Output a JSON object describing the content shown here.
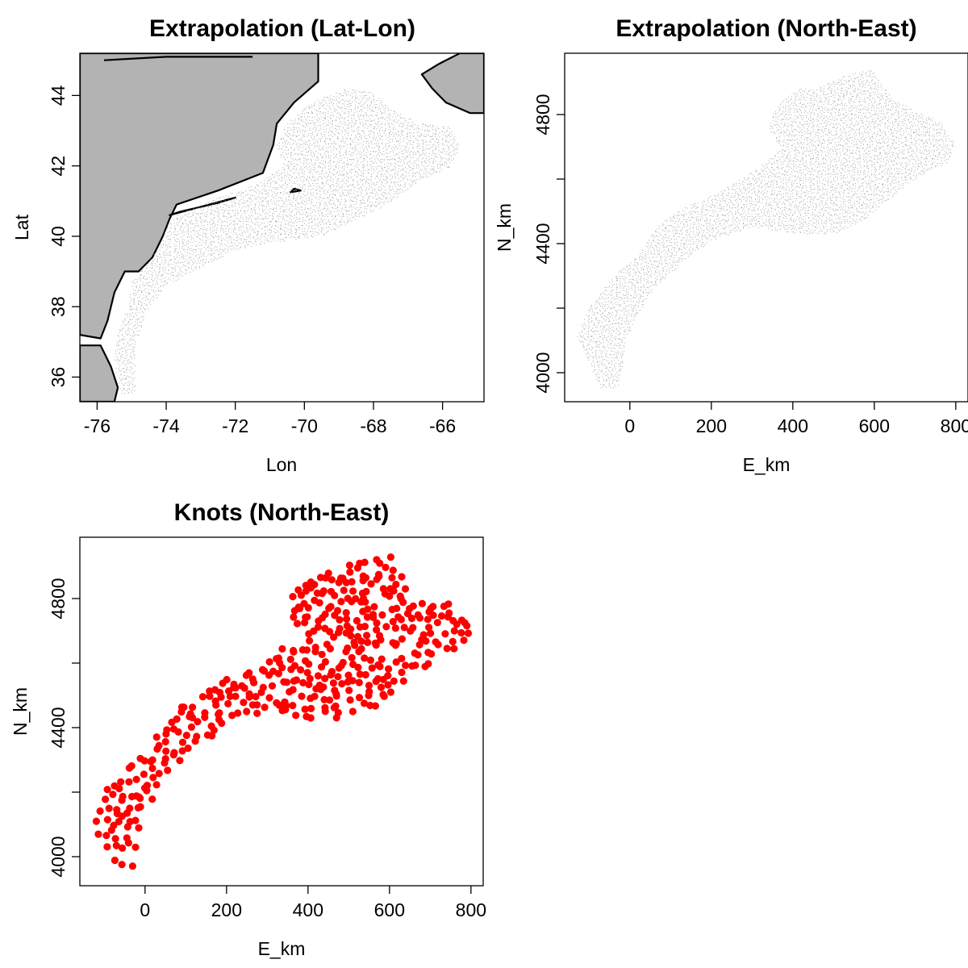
{
  "chart_data": [
    {
      "type": "scatter",
      "title": "Extrapolation (Lat-Lon)",
      "xlabel": "Lon",
      "ylabel": "Lat",
      "xlim": [
        -76.5,
        -64.8
      ],
      "ylim": [
        35.3,
        45.2
      ],
      "xticks": [
        -76,
        -74,
        -72,
        -70,
        -68,
        -66
      ],
      "yticks": [
        36,
        38,
        40,
        42,
        44
      ],
      "xtick_labels": [
        "-76",
        "-74",
        "-72",
        "-70",
        "-68",
        "-66"
      ],
      "ytick_labels": [
        "36",
        "38",
        "40",
        "42",
        "44"
      ],
      "land_color": "#b3b3b3",
      "point_color": "#9a9a9a",
      "region_outline": [
        [
          -75.3,
          35.5
        ],
        [
          -74.9,
          35.5
        ],
        [
          -74.9,
          36.8
        ],
        [
          -74.6,
          37.8
        ],
        [
          -74.0,
          38.6
        ],
        [
          -73.0,
          39.1
        ],
        [
          -72.0,
          39.6
        ],
        [
          -71.0,
          39.8
        ],
        [
          -69.5,
          40.0
        ],
        [
          -68.6,
          40.4
        ],
        [
          -67.6,
          40.9
        ],
        [
          -66.6,
          41.6
        ],
        [
          -65.7,
          42.0
        ],
        [
          -65.5,
          42.6
        ],
        [
          -65.8,
          43.1
        ],
        [
          -66.6,
          43.2
        ],
        [
          -67.5,
          43.6
        ],
        [
          -68.0,
          44.1
        ],
        [
          -68.8,
          44.2
        ],
        [
          -69.8,
          43.8
        ],
        [
          -70.5,
          43.2
        ],
        [
          -70.8,
          42.6
        ],
        [
          -70.6,
          42.0
        ],
        [
          -71.3,
          41.5
        ],
        [
          -72.5,
          41.1
        ],
        [
          -73.7,
          40.6
        ],
        [
          -74.0,
          40.3
        ],
        [
          -74.1,
          39.8
        ],
        [
          -74.6,
          39.2
        ],
        [
          -75.0,
          38.7
        ],
        [
          -75.1,
          38.0
        ],
        [
          -75.4,
          37.3
        ],
        [
          -75.5,
          36.5
        ],
        [
          -75.4,
          35.9
        ]
      ],
      "land_polygons": [
        [
          [
            -76.5,
            45.2
          ],
          [
            -69.6,
            45.2
          ],
          [
            -69.6,
            44.4
          ],
          [
            -70.3,
            43.8
          ],
          [
            -70.8,
            43.2
          ],
          [
            -70.9,
            42.6
          ],
          [
            -71.2,
            41.8
          ],
          [
            -72.5,
            41.3
          ],
          [
            -73.7,
            40.9
          ],
          [
            -73.9,
            40.5
          ],
          [
            -74.1,
            40.0
          ],
          [
            -74.4,
            39.4
          ],
          [
            -74.8,
            39.0
          ],
          [
            -75.2,
            39.0
          ],
          [
            -75.5,
            38.4
          ],
          [
            -75.7,
            37.6
          ],
          [
            -75.9,
            37.1
          ],
          [
            -76.5,
            37.2
          ]
        ],
        [
          [
            -76.5,
            36.9
          ],
          [
            -75.9,
            36.9
          ],
          [
            -75.6,
            36.3
          ],
          [
            -75.4,
            35.7
          ],
          [
            -75.5,
            35.3
          ],
          [
            -76.5,
            35.3
          ]
        ],
        [
          [
            -64.8,
            45.2
          ],
          [
            -65.5,
            45.2
          ],
          [
            -66.1,
            44.9
          ],
          [
            -66.6,
            44.6
          ],
          [
            -66.3,
            44.2
          ],
          [
            -65.9,
            43.8
          ],
          [
            -65.2,
            43.5
          ],
          [
            -64.8,
            43.5
          ]
        ],
        [
          [
            -72.0,
            41.1
          ],
          [
            -73.9,
            40.6
          ],
          [
            -73.6,
            40.7
          ],
          [
            -72.5,
            40.95
          ]
        ],
        [
          [
            -70.1,
            41.3
          ],
          [
            -70.4,
            41.25
          ],
          [
            -70.3,
            41.35
          ]
        ]
      ],
      "boundary_lines": [
        [
          [
            -75.8,
            45.0
          ],
          [
            -74.0,
            45.1
          ],
          [
            -71.5,
            45.1
          ]
        ]
      ]
    },
    {
      "type": "scatter",
      "title": "Extrapolation (North-East)",
      "xlabel": "E_km",
      "ylabel": "N_km",
      "xlim": [
        -160,
        830
      ],
      "ylim": [
        3910,
        4990
      ],
      "xticks": [
        0,
        200,
        400,
        600,
        800
      ],
      "yticks": [
        4000,
        4400,
        4800
      ],
      "xtick_labels": [
        "0",
        "200",
        "400",
        "600",
        "800"
      ],
      "ytick_labels": [
        "4000",
        "4400",
        "4800"
      ],
      "yticks_minor": [
        4200,
        4600
      ],
      "point_color": "#9a9a9a",
      "region_outline": [
        [
          -70,
          3950
        ],
        [
          -30,
          3950
        ],
        [
          -20,
          4000
        ],
        [
          -10,
          4100
        ],
        [
          20,
          4180
        ],
        [
          60,
          4260
        ],
        [
          120,
          4330
        ],
        [
          200,
          4410
        ],
        [
          300,
          4450
        ],
        [
          400,
          4430
        ],
        [
          500,
          4430
        ],
        [
          560,
          4460
        ],
        [
          620,
          4520
        ],
        [
          700,
          4600
        ],
        [
          780,
          4650
        ],
        [
          800,
          4710
        ],
        [
          760,
          4780
        ],
        [
          700,
          4810
        ],
        [
          650,
          4850
        ],
        [
          620,
          4890
        ],
        [
          600,
          4940
        ],
        [
          520,
          4920
        ],
        [
          460,
          4880
        ],
        [
          420,
          4880
        ],
        [
          380,
          4850
        ],
        [
          350,
          4800
        ],
        [
          340,
          4750
        ],
        [
          370,
          4700
        ],
        [
          340,
          4660
        ],
        [
          300,
          4620
        ],
        [
          220,
          4560
        ],
        [
          100,
          4490
        ],
        [
          60,
          4440
        ],
        [
          20,
          4360
        ],
        [
          -40,
          4300
        ],
        [
          -100,
          4200
        ],
        [
          -130,
          4110
        ]
      ]
    },
    {
      "type": "scatter",
      "title": "Knots (North-East)",
      "xlabel": "E_km",
      "ylabel": "N_km",
      "xlim": [
        -160,
        830
      ],
      "ylim": [
        3910,
        4990
      ],
      "xticks": [
        0,
        200,
        400,
        600,
        800
      ],
      "yticks": [
        4000,
        4400,
        4800
      ],
      "xtick_labels": [
        "0",
        "200",
        "400",
        "600",
        "800"
      ],
      "ytick_labels": [
        "4000",
        "4400",
        "4800"
      ],
      "yticks_minor": [
        4200,
        4600
      ],
      "point_color": "#ff0000",
      "region_outline": [
        [
          -70,
          3950
        ],
        [
          -30,
          3950
        ],
        [
          -20,
          4000
        ],
        [
          -10,
          4100
        ],
        [
          20,
          4180
        ],
        [
          60,
          4260
        ],
        [
          120,
          4330
        ],
        [
          200,
          4410
        ],
        [
          300,
          4450
        ],
        [
          400,
          4430
        ],
        [
          500,
          4430
        ],
        [
          560,
          4460
        ],
        [
          620,
          4520
        ],
        [
          700,
          4600
        ],
        [
          780,
          4650
        ],
        [
          800,
          4710
        ],
        [
          760,
          4780
        ],
        [
          700,
          4810
        ],
        [
          650,
          4850
        ],
        [
          620,
          4890
        ],
        [
          600,
          4940
        ],
        [
          520,
          4920
        ],
        [
          460,
          4880
        ],
        [
          420,
          4880
        ],
        [
          380,
          4850
        ],
        [
          350,
          4800
        ],
        [
          340,
          4750
        ],
        [
          370,
          4700
        ],
        [
          340,
          4660
        ],
        [
          300,
          4620
        ],
        [
          220,
          4560
        ],
        [
          100,
          4490
        ],
        [
          60,
          4440
        ],
        [
          20,
          4360
        ],
        [
          -40,
          4300
        ],
        [
          -100,
          4200
        ],
        [
          -130,
          4110
        ]
      ]
    }
  ]
}
